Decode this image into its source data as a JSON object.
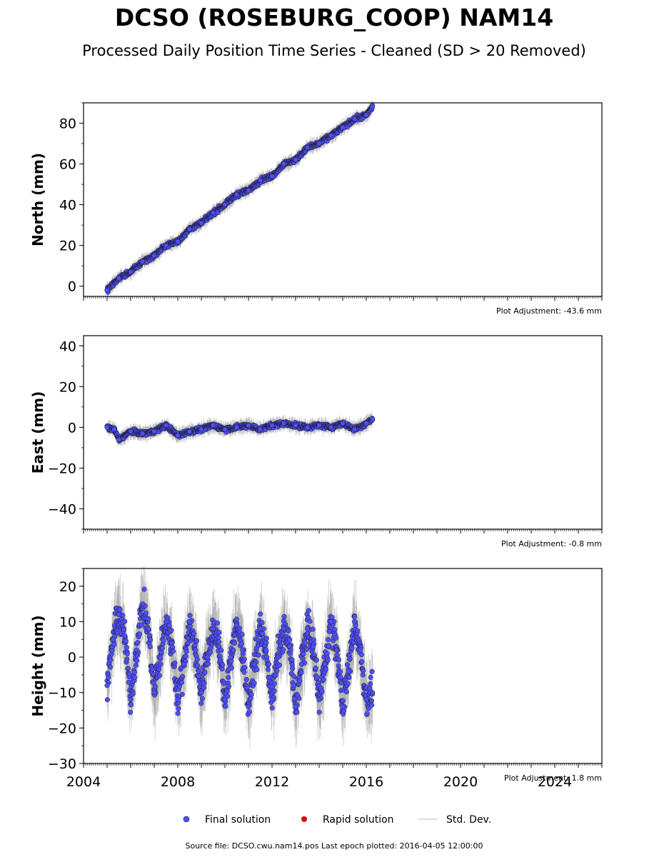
{
  "figure": {
    "title": "DCSO (ROSEBURG_COOP) NAM14",
    "subtitle": "Processed Daily Position Time Series - Cleaned (SD > 20 Removed)",
    "source": "Source file: DCSO.cwu.nam14.pos  Last epoch plotted: 2016-04-05 12:00:00"
  },
  "legend": {
    "final": "Final solution",
    "rapid": "Rapid solution",
    "std": "Std. Dev."
  },
  "colors": {
    "final": "#4f4fff",
    "rapid": "#e00000",
    "std": "#d0d0d0",
    "marker_edge": "#1a1a1a"
  },
  "chart_data": [
    {
      "type": "scatter",
      "ylabel": "North (mm)",
      "ylim": [
        -5,
        90
      ],
      "yticks": [
        0,
        20,
        40,
        60,
        80
      ],
      "xlim": [
        2004,
        2026
      ],
      "adjustment": "Plot Adjustment: -43.6 mm",
      "series": [
        {
          "name": "Final solution",
          "x": [
            2005.0,
            2005.5,
            2006.0,
            2006.5,
            2007.0,
            2007.5,
            2008.0,
            2008.5,
            2009.0,
            2009.5,
            2010.0,
            2010.5,
            2011.0,
            2011.5,
            2012.0,
            2012.5,
            2013.0,
            2013.5,
            2014.0,
            2014.5,
            2015.0,
            2015.5,
            2016.0,
            2016.26
          ],
          "y": [
            -2,
            4,
            7,
            12,
            15,
            20,
            22,
            28,
            31,
            36,
            40,
            45,
            47,
            52,
            54,
            60,
            62,
            68,
            70,
            74,
            78,
            82,
            84,
            88
          ]
        }
      ]
    },
    {
      "type": "scatter",
      "ylabel": "East (mm)",
      "ylim": [
        -50,
        45
      ],
      "yticks": [
        -40,
        -20,
        0,
        20,
        40
      ],
      "xlim": [
        2004,
        2026
      ],
      "adjustment": "Plot Adjustment: -0.8 mm",
      "series": [
        {
          "name": "Final solution",
          "x": [
            2005.0,
            2005.3,
            2005.5,
            2006.0,
            2006.5,
            2007.0,
            2007.5,
            2008.0,
            2008.5,
            2009.0,
            2009.5,
            2010.0,
            2010.5,
            2011.0,
            2011.5,
            2012.0,
            2012.5,
            2013.0,
            2013.5,
            2014.0,
            2014.5,
            2015.0,
            2015.5,
            2016.0,
            2016.26
          ],
          "y": [
            0,
            -1,
            -6,
            -2,
            -3,
            -2,
            1,
            -4,
            -2,
            -1,
            1,
            -1,
            0,
            1,
            -1,
            1,
            2,
            1,
            0,
            1,
            0,
            2,
            -1,
            2,
            4
          ]
        }
      ]
    },
    {
      "type": "scatter",
      "ylabel": "Height (mm)",
      "ylim": [
        -30,
        25
      ],
      "yticks": [
        -30,
        -20,
        -10,
        0,
        10,
        20
      ],
      "xlim": [
        2004,
        2026
      ],
      "xticks": [
        2004,
        2008,
        2012,
        2016,
        2020,
        2024
      ],
      "adjustment": "Plot Adjustment: 1.8 mm",
      "series": [
        {
          "name": "Final solution",
          "x": [
            2005.0,
            2005.25,
            2005.5,
            2005.75,
            2006.0,
            2006.25,
            2006.5,
            2006.75,
            2007.0,
            2007.25,
            2007.5,
            2007.75,
            2008.0,
            2008.25,
            2008.5,
            2008.75,
            2009.0,
            2009.25,
            2009.5,
            2009.75,
            2010.0,
            2010.25,
            2010.5,
            2010.75,
            2011.0,
            2011.25,
            2011.5,
            2011.75,
            2012.0,
            2012.25,
            2012.5,
            2012.75,
            2013.0,
            2013.25,
            2013.5,
            2013.75,
            2014.0,
            2014.25,
            2014.5,
            2014.75,
            2015.0,
            2015.25,
            2015.5,
            2015.75,
            2016.0,
            2016.26
          ],
          "y": [
            -8,
            5,
            12,
            6,
            -12,
            2,
            15,
            8,
            -10,
            0,
            10,
            4,
            -12,
            -2,
            10,
            2,
            -10,
            0,
            8,
            3,
            -12,
            0,
            9,
            2,
            -14,
            -2,
            8,
            2,
            -12,
            0,
            8,
            3,
            -14,
            -2,
            8,
            3,
            -12,
            -2,
            10,
            2,
            -14,
            -4,
            10,
            2,
            -12,
            -10
          ]
        }
      ]
    }
  ]
}
